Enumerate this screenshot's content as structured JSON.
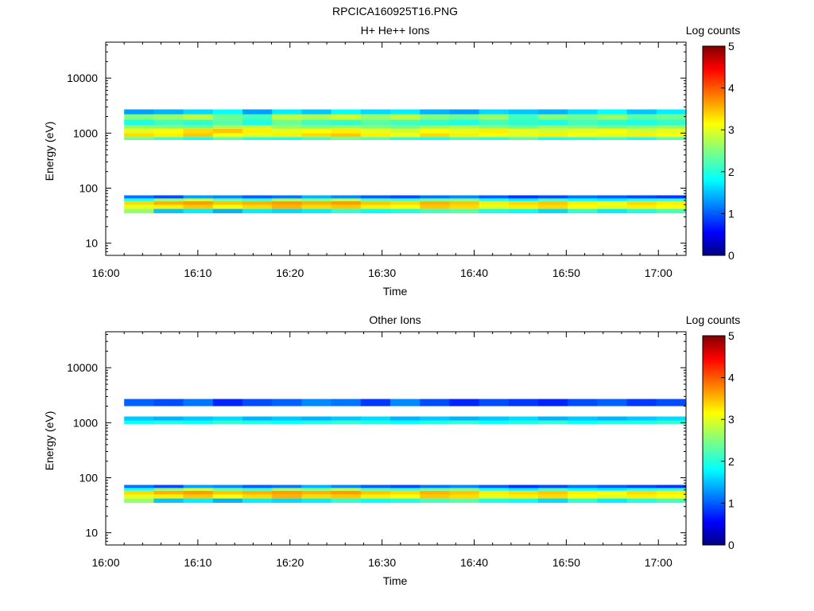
{
  "figure": {
    "title": "RPCICA160925T16.PNG"
  },
  "chart_data": [
    {
      "type": "heatmap",
      "title": "H+ He++ Ions",
      "xlabel": "Time",
      "ylabel": "Energy (eV)",
      "x_ticks": [
        "16:00",
        "16:10",
        "16:20",
        "16:30",
        "16:40",
        "16:50",
        "17:00"
      ],
      "xlim": [
        "16:00",
        "17:03"
      ],
      "y_scale": "log",
      "y_ticks": [
        10,
        100,
        1000,
        10000
      ],
      "y_tick_labels": [
        "10",
        "100",
        "1000",
        "10000"
      ],
      "ylim": [
        6,
        45000
      ],
      "colorbar": {
        "label": "Log counts",
        "range": [
          0,
          5
        ],
        "ticks": [
          "0",
          "1",
          "2",
          "3",
          "4",
          "5"
        ],
        "colormap": "jet"
      },
      "bands": [
        {
          "e_low": 35,
          "e_high": 42,
          "values": [
            2.6,
            1.6,
            1.8,
            1.5,
            1.8,
            1.7,
            1.8,
            2.1,
            1.9,
            2.0,
            2.2,
            2.3,
            2.0,
            1.9,
            1.7,
            2.1,
            1.8,
            2.0,
            2.2
          ]
        },
        {
          "e_low": 42,
          "e_high": 50,
          "values": [
            3.0,
            3.2,
            3.4,
            3.1,
            3.3,
            3.5,
            3.3,
            3.4,
            3.2,
            3.1,
            3.4,
            3.3,
            3.0,
            3.2,
            3.3,
            3.1,
            3.0,
            3.2,
            3.1
          ]
        },
        {
          "e_low": 50,
          "e_high": 58,
          "values": [
            3.3,
            3.5,
            3.6,
            3.4,
            3.5,
            3.6,
            3.5,
            3.6,
            3.4,
            3.3,
            3.5,
            3.4,
            3.2,
            3.3,
            3.4,
            3.2,
            3.1,
            3.3,
            3.2
          ]
        },
        {
          "e_low": 58,
          "e_high": 65,
          "values": [
            2.0,
            2.6,
            2.9,
            2.4,
            2.2,
            2.7,
            2.5,
            2.8,
            2.3,
            2.2,
            2.4,
            2.5,
            2.0,
            1.8,
            2.2,
            1.9,
            1.8,
            2.0,
            2.1
          ]
        },
        {
          "e_low": 65,
          "e_high": 74,
          "values": [
            1.2,
            1.0,
            1.4,
            1.3,
            1.1,
            1.2,
            1.5,
            1.3,
            1.1,
            1.0,
            1.2,
            1.3,
            1.1,
            0.9,
            1.0,
            1.2,
            1.1,
            1.0,
            0.9
          ]
        },
        {
          "e_low": 750,
          "e_high": 850,
          "values": [
            2.4,
            2.2,
            2.0,
            2.3,
            2.1,
            2.0,
            2.2,
            2.4,
            2.3,
            2.1,
            2.0,
            2.2,
            2.1,
            2.3,
            2.0,
            2.1,
            2.2,
            2.0,
            2.3
          ]
        },
        {
          "e_low": 850,
          "e_high": 1000,
          "values": [
            3.3,
            3.2,
            3.4,
            3.1,
            3.0,
            3.2,
            3.3,
            3.4,
            3.2,
            3.1,
            3.3,
            3.2,
            3.1,
            3.0,
            3.2,
            3.1,
            3.0,
            3.2,
            3.1
          ]
        },
        {
          "e_low": 1000,
          "e_high": 1200,
          "values": [
            3.0,
            3.1,
            3.3,
            3.4,
            3.2,
            3.0,
            3.1,
            3.2,
            3.0,
            2.9,
            3.1,
            3.0,
            3.2,
            3.0,
            2.9,
            3.0,
            3.1,
            2.9,
            3.0
          ]
        },
        {
          "e_low": 1200,
          "e_high": 1400,
          "values": [
            2.6,
            2.5,
            2.4,
            2.7,
            2.8,
            2.6,
            2.5,
            2.6,
            2.5,
            2.4,
            2.6,
            2.7,
            2.5,
            2.4,
            2.6,
            2.5,
            2.4,
            2.5,
            2.6
          ]
        },
        {
          "e_low": 1400,
          "e_high": 1750,
          "values": [
            2.0,
            2.2,
            2.1,
            2.3,
            2.0,
            2.4,
            2.2,
            2.1,
            2.3,
            2.2,
            2.1,
            2.0,
            2.2,
            2.1,
            2.0,
            2.2,
            2.1,
            2.0,
            2.1
          ]
        },
        {
          "e_low": 1750,
          "e_high": 2200,
          "values": [
            2.5,
            2.6,
            2.8,
            2.4,
            2.2,
            2.8,
            2.7,
            2.9,
            2.6,
            2.8,
            2.5,
            2.4,
            2.6,
            2.2,
            2.5,
            2.4,
            2.6,
            2.3,
            2.4
          ]
        },
        {
          "e_low": 2200,
          "e_high": 2700,
          "values": [
            1.4,
            1.5,
            1.7,
            1.9,
            1.4,
            1.8,
            1.6,
            1.9,
            1.7,
            1.8,
            1.5,
            1.4,
            1.7,
            1.6,
            1.5,
            1.7,
            1.9,
            1.6,
            1.8
          ]
        }
      ]
    },
    {
      "type": "heatmap",
      "title": "Other Ions",
      "xlabel": "Time",
      "ylabel": "Energy (eV)",
      "x_ticks": [
        "16:00",
        "16:10",
        "16:20",
        "16:30",
        "16:40",
        "16:50",
        "17:00"
      ],
      "xlim": [
        "16:00",
        "17:03"
      ],
      "y_scale": "log",
      "y_ticks": [
        10,
        100,
        1000,
        10000
      ],
      "y_tick_labels": [
        "10",
        "100",
        "1000",
        "10000"
      ],
      "ylim": [
        6,
        45000
      ],
      "colorbar": {
        "label": "Log counts",
        "range": [
          0,
          5
        ],
        "ticks": [
          "0",
          "1",
          "2",
          "3",
          "4",
          "5"
        ],
        "colormap": "jet"
      },
      "bands": [
        {
          "e_low": 35,
          "e_high": 42,
          "values": [
            2.6,
            1.6,
            1.8,
            1.5,
            1.8,
            1.7,
            1.8,
            2.1,
            1.9,
            2.0,
            2.2,
            2.3,
            2.0,
            1.9,
            1.7,
            2.1,
            1.8,
            2.0,
            2.2
          ]
        },
        {
          "e_low": 42,
          "e_high": 50,
          "values": [
            3.0,
            3.2,
            3.4,
            3.1,
            3.3,
            3.5,
            3.3,
            3.4,
            3.2,
            3.1,
            3.4,
            3.3,
            3.0,
            3.2,
            3.3,
            3.1,
            3.0,
            3.2,
            3.1
          ]
        },
        {
          "e_low": 50,
          "e_high": 58,
          "values": [
            3.3,
            3.5,
            3.6,
            3.4,
            3.5,
            3.6,
            3.5,
            3.6,
            3.4,
            3.3,
            3.5,
            3.4,
            3.2,
            3.3,
            3.4,
            3.2,
            3.1,
            3.3,
            3.2
          ]
        },
        {
          "e_low": 58,
          "e_high": 65,
          "values": [
            2.0,
            2.6,
            2.9,
            2.4,
            2.2,
            2.7,
            2.5,
            2.8,
            2.3,
            2.2,
            2.4,
            2.5,
            2.0,
            1.8,
            2.2,
            1.9,
            1.8,
            2.0,
            2.1
          ]
        },
        {
          "e_low": 65,
          "e_high": 74,
          "values": [
            1.2,
            1.0,
            1.4,
            1.3,
            1.1,
            1.2,
            1.5,
            1.3,
            1.1,
            1.0,
            1.2,
            1.3,
            1.1,
            0.9,
            1.0,
            1.2,
            1.1,
            1.0,
            0.9
          ]
        },
        {
          "e_low": 950,
          "e_high": 1100,
          "values": [
            1.9,
            2.0,
            1.9,
            2.1,
            2.0,
            1.9,
            2.0,
            2.1,
            2.0,
            1.9,
            2.0,
            2.1,
            1.9,
            2.0,
            2.1,
            1.9,
            2.0,
            2.0,
            2.1
          ]
        },
        {
          "e_low": 1100,
          "e_high": 1300,
          "values": [
            1.6,
            1.5,
            1.6,
            1.7,
            1.5,
            1.6,
            1.5,
            1.6,
            1.7,
            1.5,
            1.6,
            1.5,
            1.6,
            1.7,
            1.5,
            1.6,
            1.5,
            1.6,
            1.7
          ]
        },
        {
          "e_low": 2000,
          "e_high": 2700,
          "values": [
            1.1,
            1.0,
            1.2,
            0.8,
            1.0,
            1.1,
            1.3,
            1.2,
            0.9,
            1.3,
            1.0,
            0.8,
            1.0,
            0.9,
            0.8,
            1.0,
            1.1,
            0.9,
            1.0
          ]
        }
      ]
    }
  ]
}
